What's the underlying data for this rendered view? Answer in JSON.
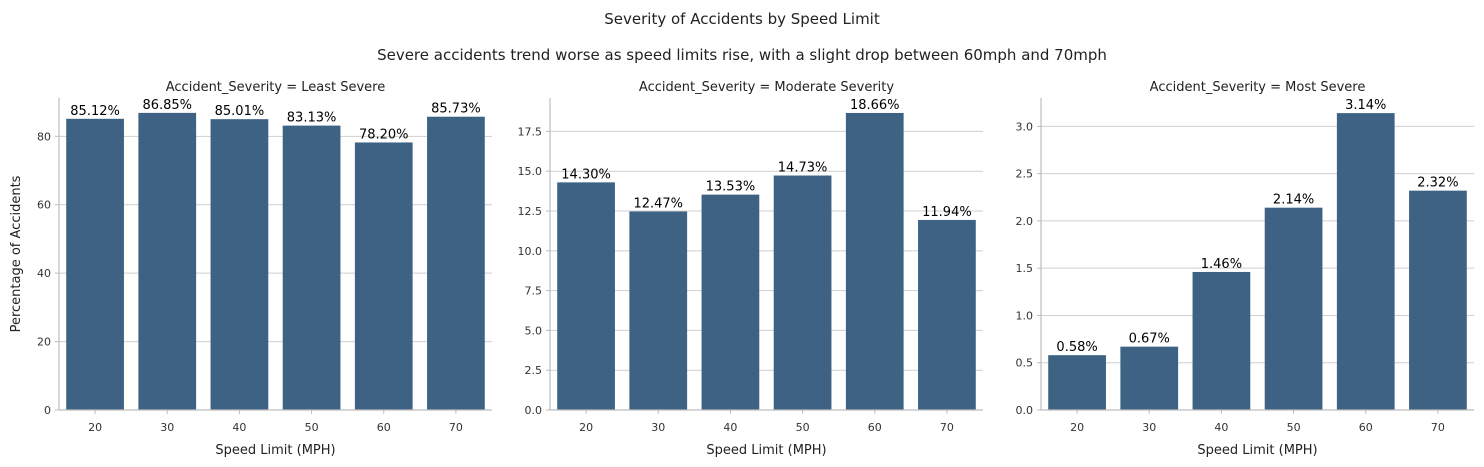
{
  "figure": {
    "title": "Severity of Accidents by Speed Limit",
    "subtitle": "Severe accidents trend worse as speed limits rise, with a slight drop between 60mph and 70mph"
  },
  "colors": {
    "bar": "#3d6283"
  },
  "chart_data": [
    {
      "type": "bar",
      "title": "Accident_Severity = Least Severe",
      "xlabel": "Speed Limit (MPH)",
      "ylabel": "Percentage of Accidents",
      "categories": [
        "20",
        "30",
        "40",
        "50",
        "60",
        "70"
      ],
      "values": [
        85.12,
        86.85,
        85.01,
        83.13,
        78.2,
        85.73
      ],
      "data_labels": [
        "85.12%",
        "86.85%",
        "85.01%",
        "83.13%",
        "78.20%",
        "85.73%"
      ],
      "ylim": [
        0,
        91.2
      ],
      "yticks": [
        0,
        20,
        40,
        60,
        80
      ],
      "ytick_labels": [
        "0",
        "20",
        "40",
        "60",
        "80"
      ],
      "grid": "y"
    },
    {
      "type": "bar",
      "title": "Accident_Severity = Moderate Severity",
      "xlabel": "Speed Limit (MPH)",
      "ylabel": "",
      "categories": [
        "20",
        "30",
        "40",
        "50",
        "60",
        "70"
      ],
      "values": [
        14.3,
        12.47,
        13.53,
        14.73,
        18.66,
        11.94
      ],
      "data_labels": [
        "14.30%",
        "12.47%",
        "13.53%",
        "14.73%",
        "18.66%",
        "11.94%"
      ],
      "ylim": [
        0,
        19.6
      ],
      "yticks": [
        0,
        2.5,
        5,
        7.5,
        10,
        12.5,
        15,
        17.5
      ],
      "ytick_labels": [
        "0.0",
        "2.5",
        "5.0",
        "7.5",
        "10.0",
        "12.5",
        "15.0",
        "17.5"
      ],
      "grid": "y"
    },
    {
      "type": "bar",
      "title": "Accident_Severity = Most Severe",
      "xlabel": "Speed Limit (MPH)",
      "ylabel": "",
      "categories": [
        "20",
        "30",
        "40",
        "50",
        "60",
        "70"
      ],
      "values": [
        0.58,
        0.67,
        1.46,
        2.14,
        3.14,
        2.32
      ],
      "data_labels": [
        "0.58%",
        "0.67%",
        "1.46%",
        "2.14%",
        "3.14%",
        "2.32%"
      ],
      "ylim": [
        0,
        3.3
      ],
      "yticks": [
        0,
        0.5,
        1.0,
        1.5,
        2.0,
        2.5,
        3.0
      ],
      "ytick_labels": [
        "0.0",
        "0.5",
        "1.0",
        "1.5",
        "2.0",
        "2.5",
        "3.0"
      ],
      "grid": "y"
    }
  ]
}
